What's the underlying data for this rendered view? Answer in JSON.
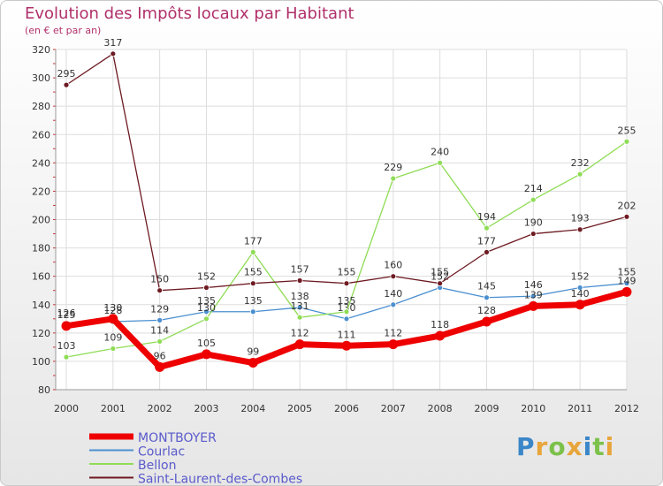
{
  "title": "Evolution des Impôts locaux par Habitant",
  "subtitle": "(en € et par an)",
  "logo": {
    "text": "Proxiti",
    "colors": [
      "#3a86c8",
      "#e8a53a",
      "#7cc14a",
      "#e8a53a",
      "#3a86c8",
      "#7cc14a",
      "#e8a53a"
    ]
  },
  "chart_data": {
    "type": "line",
    "x": [
      2000,
      2001,
      2002,
      2003,
      2004,
      2005,
      2006,
      2007,
      2008,
      2009,
      2010,
      2011,
      2012
    ],
    "ylim": [
      80,
      320
    ],
    "yticks": [
      80,
      100,
      120,
      140,
      160,
      180,
      200,
      220,
      240,
      260,
      280,
      300,
      320
    ],
    "grid": true,
    "legend_placement": "bottom-left",
    "series": [
      {
        "name": "Courlac",
        "color": "#4a8fd0",
        "values": [
          126,
          128,
          129,
          135,
          135,
          138,
          130,
          140,
          152,
          145,
          146,
          152,
          155
        ],
        "labels": [
          "126",
          "128",
          "129",
          "135",
          "135",
          "138",
          "130",
          "140",
          "152",
          "145",
          "146",
          "152",
          "155"
        ]
      },
      {
        "name": "Bellon",
        "color": "#8fdc55",
        "values": [
          103,
          109,
          114,
          130,
          177,
          131,
          135,
          229,
          240,
          194,
          214,
          232,
          255
        ],
        "labels": [
          "103",
          "109",
          "114",
          "130",
          "177",
          "131",
          "135",
          "229",
          "240",
          "194",
          "214",
          "232",
          "255"
        ]
      },
      {
        "name": "Saint-Laurent-des-Combes",
        "color": "#6e1a22",
        "values": [
          295,
          317,
          150,
          152,
          155,
          157,
          155,
          160,
          155,
          177,
          190,
          193,
          202
        ],
        "labels": [
          "295",
          "317",
          "150",
          "152",
          "155",
          "157",
          "155",
          "160",
          "155",
          "177",
          "190",
          "193",
          "202"
        ]
      },
      {
        "name": "MONTBOYER",
        "color": "#ee0000",
        "values": [
          125,
          130,
          96,
          105,
          99,
          112,
          111,
          112,
          118,
          128,
          139,
          140,
          149
        ],
        "labels": [
          "125",
          "130",
          "96",
          "105",
          "99",
          "112",
          "111",
          "112",
          "118",
          "128",
          "139",
          "140",
          "149"
        ]
      }
    ],
    "legend_order": [
      "MONTBOYER",
      "Courlac",
      "Bellon",
      "Saint-Laurent-des-Combes"
    ]
  }
}
